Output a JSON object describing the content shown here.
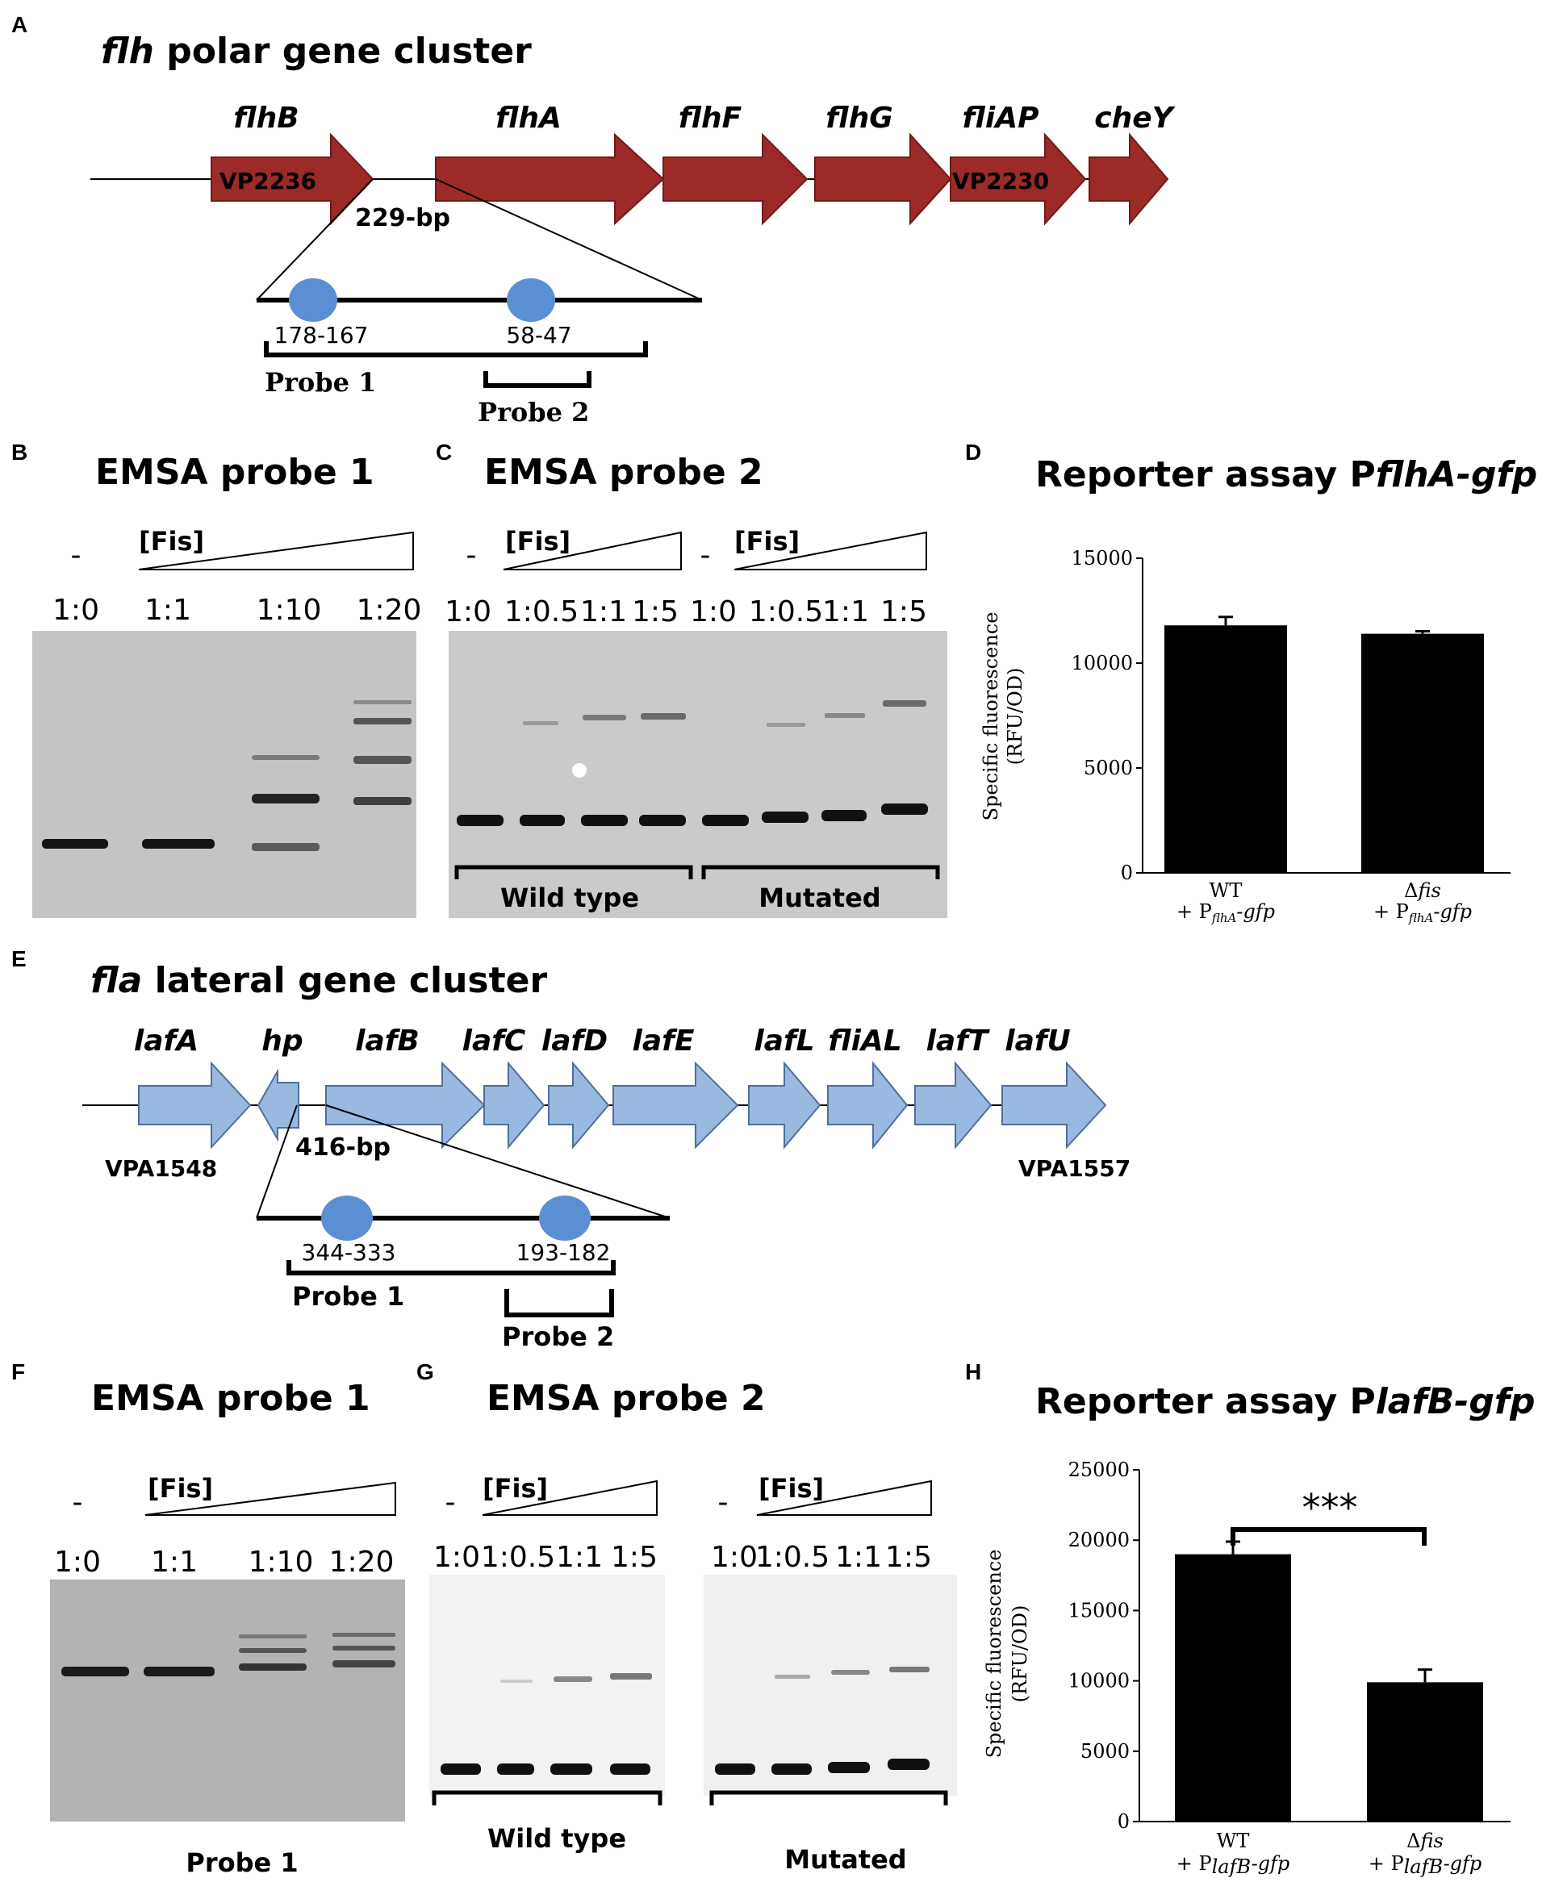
{
  "panel_labels": {
    "A": "A",
    "B": "B",
    "C": "C",
    "D": "D",
    "E": "E",
    "F": "F",
    "G": "G",
    "H": "H"
  },
  "panel_a": {
    "title_italic": "flh",
    "title_rest": " polar gene cluster",
    "genes": [
      "flhB",
      "flhA",
      "flhF",
      "flhG",
      "fliAP",
      "cheY"
    ],
    "vp_left": "VP2236",
    "vp_right": "VP2230",
    "bp_label": "229-bp",
    "site1": "178-167",
    "site2": "58-47",
    "probe1": "Probe 1",
    "probe2": "Probe 2",
    "colors": {
      "arrow_fill": "#9c2a27",
      "arrow_stroke": "#6e1b19",
      "site": "#5b8fd3"
    }
  },
  "panel_b": {
    "title": "EMSA probe 1",
    "minus": "-",
    "fis": "[Fis]",
    "ratios": [
      "1:0",
      "1:1",
      "1:10",
      "1:20"
    ]
  },
  "panel_c": {
    "title": "EMSA probe 2",
    "minus": "-",
    "fis": "[Fis]",
    "ratios": [
      "1:0",
      "1:0.5",
      "1:1",
      "1:5",
      "1:0",
      "1:0.5",
      "1:1",
      "1:5"
    ],
    "group_left": "Wild type",
    "group_right": "Mutated"
  },
  "panel_d": {
    "title_plain": "Reporter assay P",
    "title_italic": "flhA-gfp",
    "chart_data": {
      "type": "bar",
      "categories": [
        "WT + PflhA-gfp",
        "Δfis + PflhA-gfp"
      ],
      "values": [
        11800,
        11400
      ],
      "errors": [
        400,
        120
      ],
      "ylabel": "Specific fluorescence (RFU/OD)",
      "ylim": [
        0,
        15000
      ],
      "yticks": [
        "0",
        "5000",
        "10000",
        "15000"
      ]
    },
    "cat1_line1": "WT",
    "cat1_line2_prefix": "+ P",
    "cat1_sub": "flhA",
    "cat1_line2_suffix": "-gfp",
    "cat2_line1_delta": "Δ",
    "cat2_line1_italic": "fis",
    "cat2_line2_prefix": "+ P",
    "cat2_sub": "flhA",
    "cat2_line2_suffix": "-gfp",
    "ylab_line1": "Specific fluorescence",
    "ylab_line2": "(RFU/OD)"
  },
  "panel_e": {
    "title_italic": "fla",
    "title_rest": " lateral gene cluster",
    "genes": [
      "lafA",
      "hp",
      "lafB",
      "lafC",
      "lafD",
      "lafE",
      "lafL",
      "fliAL",
      "lafT",
      "lafU"
    ],
    "vp_left": "VPA1548",
    "vp_right": "VPA1557",
    "bp_label": "416-bp",
    "site1": "344-333",
    "site2": "193-182",
    "probe1": "Probe 1",
    "probe2": "Probe 2",
    "colors": {
      "arrow_fill": "#9ab9e1",
      "arrow_stroke": "#4e6f9a",
      "site": "#5b8fd3"
    }
  },
  "panel_f": {
    "title": "EMSA probe 1",
    "minus": "-",
    "fis": "[Fis]",
    "ratios": [
      "1:0",
      "1:1",
      "1:10",
      "1:20"
    ],
    "caption": "Probe 1"
  },
  "panel_g": {
    "title": "EMSA probe 2",
    "minus": "-",
    "fis": "[Fis]",
    "ratios": [
      "1:0",
      "1:0.5",
      "1:1",
      "1:5",
      "1:0",
      "1:0.5",
      "1:1",
      "1:5"
    ],
    "group_left": "Wild type",
    "group_right": "Mutated"
  },
  "panel_h": {
    "title_plain": "Reporter assay P",
    "title_italic": "lafB-gfp",
    "chart_data": {
      "type": "bar",
      "categories": [
        "WT + PlafB-gfp",
        "Δfis + PlafB-gfp"
      ],
      "values": [
        19000,
        9900
      ],
      "errors": [
        900,
        900
      ],
      "ylabel": "Specific fluorescence (RFU/OD)",
      "ylim": [
        0,
        25000
      ],
      "yticks": [
        "0",
        "5000",
        "10000",
        "15000",
        "20000",
        "25000"
      ]
    },
    "significance": "***",
    "cat1_line1": "WT",
    "cat1_line2_prefix": "+ P",
    "cat1_sub": "lafB",
    "cat1_line2_suffix": "-gfp",
    "cat2_line1_delta": "Δ",
    "cat2_line1_italic": "fis",
    "cat2_line2_prefix": "+ P",
    "cat2_sub": "lafB",
    "cat2_line2_suffix": "-gfp",
    "ylab_line1": "Specific fluorescence",
    "ylab_line2": "(RFU/OD)"
  }
}
